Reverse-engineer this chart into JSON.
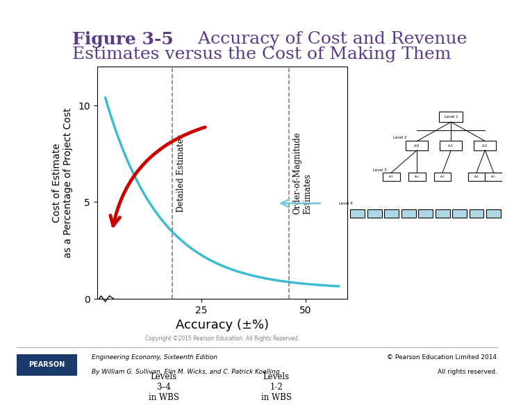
{
  "title_bold": "Figure 3-5",
  "title_rest": "  Accuracy of Cost and Revenue\nEstimates versus the Cost of Making Them",
  "title_color": "#5b3a8a",
  "title_fontsize": 18,
  "bg_color": "#ffffff",
  "plot_bg": "#ffffff",
  "curve_color": "#3bbcd4",
  "curve_linewidth": 2.5,
  "ylabel": "Cost of Estimate\nas a Percentage of Project Cost",
  "xlabel": "Accuracy (±%)",
  "xlabel_fontsize": 13,
  "ylabel_fontsize": 10,
  "yticks": [
    0,
    5,
    10
  ],
  "xtick_25": 25,
  "xtick_50": 50,
  "xlim": [
    0,
    60
  ],
  "ylim": [
    0,
    12
  ],
  "dashed_x1": 18,
  "dashed_x2": 46,
  "label_detailed": "Detailed Estimates",
  "label_order": "Order-of-Magnitude\nEstimates",
  "label_levels34": "Levels\n3–4\nin WBS",
  "label_levels12": "Levels\n1-2\nin WBS",
  "footer_left1": "Engineering Economy, Sixteenth Edition",
  "footer_left2": "By William G. Sullivan, Elin M. Wicks, and C. Patrick Koelling",
  "footer_right1": "© Pearson Education Limited 2014",
  "footer_right2": "All rights reserved.",
  "pearson_blue": "#1a3a6b",
  "pearson_gold": "#f5a800",
  "copyright_text": "Copyright ©2015 Pearson Education. All Rights Reserved.",
  "wbs_box_color": "#add8e6"
}
